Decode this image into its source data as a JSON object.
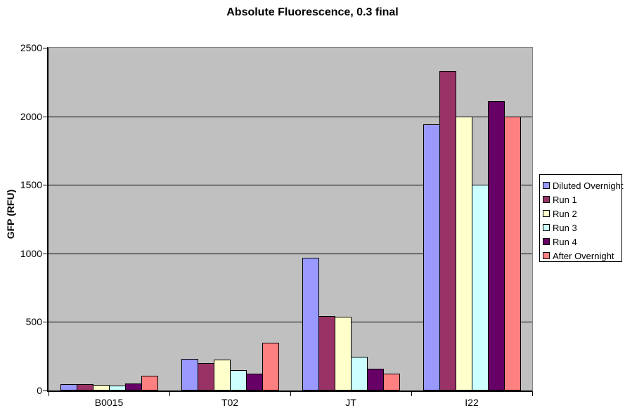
{
  "chart_data": {
    "type": "bar",
    "title": "Absolute Fluorescence, 0.3 final",
    "xlabel": "",
    "ylabel": "GFP (RFU)",
    "categories": [
      "B0015",
      "T02",
      "JT",
      "I22"
    ],
    "series": [
      {
        "name": "Diluted Overnight",
        "color": "#9999FF",
        "values": [
          45,
          230,
          970,
          1940
        ]
      },
      {
        "name": "Run 1",
        "color": "#993366",
        "values": [
          45,
          200,
          545,
          2330
        ]
      },
      {
        "name": "Run 2",
        "color": "#FFFFCC",
        "values": [
          40,
          225,
          540,
          2000
        ]
      },
      {
        "name": "Run 3",
        "color": "#CCFFFF",
        "values": [
          35,
          150,
          245,
          1500
        ]
      },
      {
        "name": "Run 4",
        "color": "#660066",
        "values": [
          50,
          125,
          160,
          2110
        ]
      },
      {
        "name": "After Overnight",
        "color": "#FF8080",
        "values": [
          110,
          350,
          125,
          2000
        ]
      }
    ],
    "ylim": [
      0,
      2500
    ],
    "yticks": [
      0,
      500,
      1000,
      1500,
      2000,
      2500
    ],
    "grid": true,
    "legend_position": "right",
    "plot_background": "#C0C0C0",
    "gridline_color": "#000000",
    "chart_background": "#FFFFFF"
  }
}
